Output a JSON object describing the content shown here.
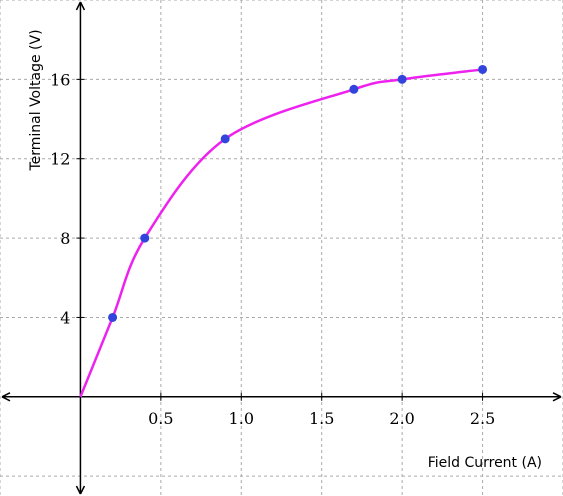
{
  "chart_data": {
    "type": "line",
    "xlabel": "Field Current (A)",
    "ylabel": "Terminal Voltage (V)",
    "xlim": [
      -0.5,
      3.0
    ],
    "ylim": [
      -5.0,
      20.0
    ],
    "grid": true,
    "x_ticks": [
      0.5,
      1.0,
      1.5,
      2.0,
      2.5
    ],
    "x_tick_labels": [
      "0.5",
      "1.0",
      "1.5",
      "2.0",
      "2.5"
    ],
    "y_ticks": [
      4,
      8,
      12,
      16
    ],
    "y_tick_labels": [
      "4",
      "8",
      "12",
      "16"
    ],
    "series": [
      {
        "x": [
          0,
          0.2,
          0.4,
          0.9,
          1.7,
          2.0,
          2.5
        ],
        "y": [
          0,
          4,
          8,
          13,
          15.5,
          16,
          16.5
        ]
      }
    ],
    "colors": {
      "curve": "#ee22ee",
      "points": "#3344dd",
      "axes": "#000000",
      "grid": "#aaaaaa"
    }
  }
}
